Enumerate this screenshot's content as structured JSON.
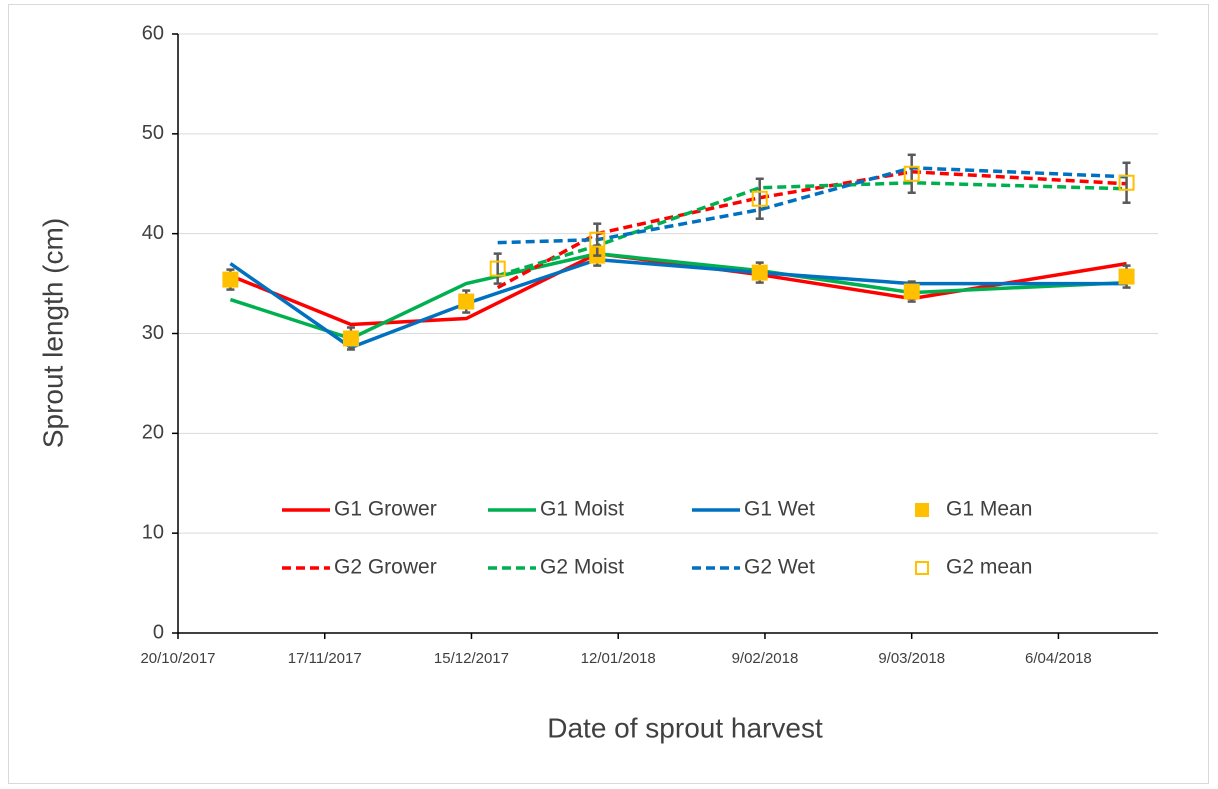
{
  "chart_data": {
    "type": "line",
    "xlabel": "Date of sprout harvest",
    "ylabel": "Sprout length (cm)",
    "xlim": [
      "2017-10-20",
      "2018-04-25"
    ],
    "xticks": [
      {
        "value": "2017-10-20",
        "label": "20/10/2017"
      },
      {
        "value": "2017-11-17",
        "label": "17/11/2017"
      },
      {
        "value": "2017-12-15",
        "label": "15/12/2017"
      },
      {
        "value": "2018-01-12",
        "label": "12/01/2018"
      },
      {
        "value": "2018-02-09",
        "label": "9/02/2018"
      },
      {
        "value": "2018-03-09",
        "label": "9/03/2018"
      },
      {
        "value": "2018-04-06",
        "label": "6/04/2018"
      }
    ],
    "ylim": [
      0,
      60
    ],
    "yticks": [
      0,
      10,
      20,
      30,
      40,
      50,
      60
    ],
    "grid": true,
    "series": [
      {
        "name": "G1 Grower",
        "color": "#ff0000",
        "dash": false,
        "x": [
          "2017-10-30",
          "2017-11-22",
          "2017-12-14",
          "2018-01-08",
          "2018-02-08",
          "2018-03-09",
          "2018-04-19"
        ],
        "values": [
          35.8,
          30.9,
          31.5,
          38,
          35.9,
          33.5,
          37
        ]
      },
      {
        "name": "G1 Moist",
        "color": "#00b050",
        "dash": false,
        "x": [
          "2017-10-30",
          "2017-11-22",
          "2017-12-14",
          "2018-01-08",
          "2018-02-08",
          "2018-03-09",
          "2018-04-19"
        ],
        "values": [
          33.4,
          29.5,
          35,
          38,
          36.3,
          34.1,
          35.1
        ]
      },
      {
        "name": "G1 Wet",
        "color": "#0070c0",
        "dash": false,
        "x": [
          "2017-10-30",
          "2017-11-22",
          "2017-12-14",
          "2018-01-08",
          "2018-02-08",
          "2018-03-09",
          "2018-04-19"
        ],
        "values": [
          37,
          28.6,
          33,
          37.4,
          36.1,
          35,
          35
        ]
      },
      {
        "name": "G1 Mean",
        "color": "#ffc000",
        "marker": "filled",
        "x": [
          "2017-10-30",
          "2017-11-22",
          "2017-12-14",
          "2018-01-08",
          "2018-02-08",
          "2018-03-09",
          "2018-04-19"
        ],
        "values": [
          35.4,
          29.5,
          33.2,
          37.8,
          36.1,
          34.2,
          35.7
        ],
        "errors": [
          1,
          1.1,
          1.1,
          1,
          1,
          1,
          1.1
        ]
      },
      {
        "name": "G2 Grower",
        "color": "#ff0000",
        "dash": true,
        "x": [
          "2017-12-20",
          "2018-01-08",
          "2018-02-08",
          "2018-03-09",
          "2018-04-19"
        ],
        "values": [
          34.6,
          40,
          43.6,
          46.2,
          45
        ]
      },
      {
        "name": "G2 Moist",
        "color": "#00b050",
        "dash": true,
        "x": [
          "2017-12-20",
          "2018-01-08",
          "2018-02-08",
          "2018-03-09",
          "2018-04-19"
        ],
        "values": [
          35.8,
          38.8,
          44.6,
          45.1,
          44.5
        ]
      },
      {
        "name": "G2 Wet",
        "color": "#0070c0",
        "dash": true,
        "x": [
          "2017-12-20",
          "2018-01-08",
          "2018-02-08",
          "2018-03-09",
          "2018-04-19"
        ],
        "values": [
          39.1,
          39.4,
          42.4,
          46.6,
          45.7
        ]
      },
      {
        "name": "G2 mean",
        "color": "#ffc000",
        "marker": "hollow",
        "x": [
          "2017-12-20",
          "2018-01-08",
          "2018-02-08",
          "2018-03-09",
          "2018-04-19"
        ],
        "values": [
          36.5,
          39.4,
          43.5,
          46,
          45.1
        ],
        "errors": [
          1.5,
          1.6,
          2,
          1.9,
          2
        ]
      }
    ]
  }
}
